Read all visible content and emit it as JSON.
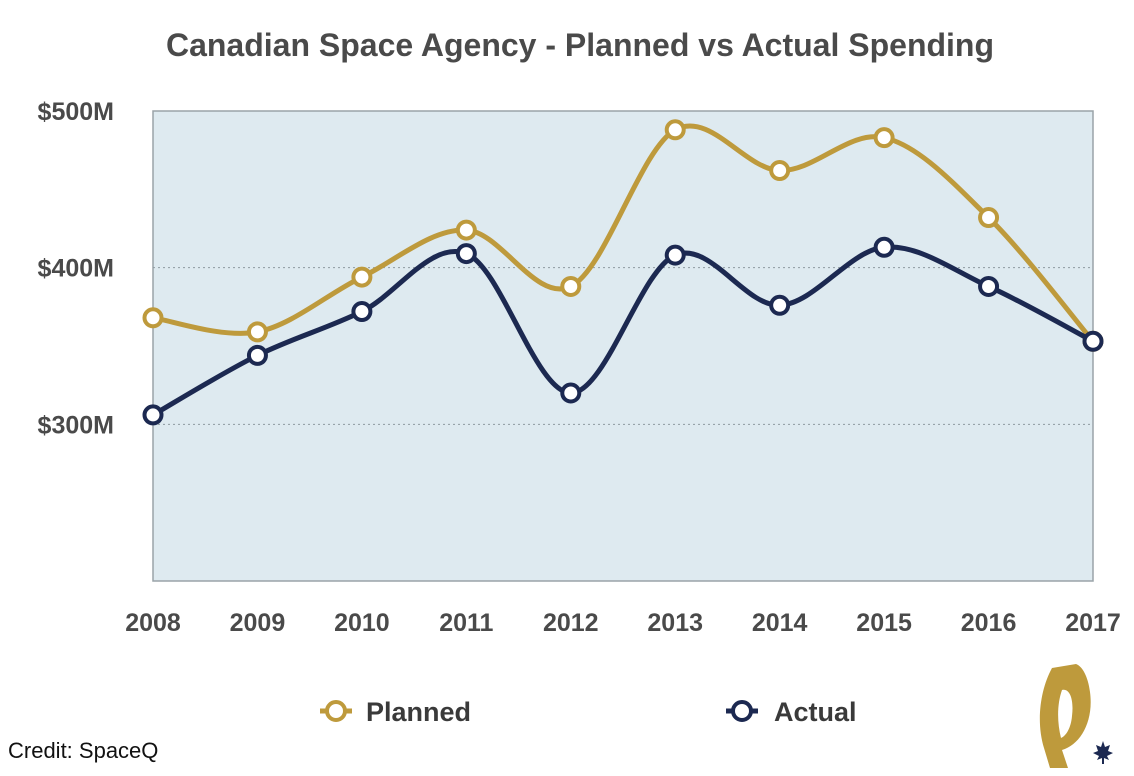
{
  "chart_data": {
    "type": "line",
    "title": "Canadian Space Agency - Planned vs Actual Spending",
    "categories": [
      "2008",
      "2009",
      "2010",
      "2011",
      "2012",
      "2013",
      "2014",
      "2015",
      "2016",
      "2017"
    ],
    "series": [
      {
        "name": "Planned",
        "color": "#BE9A3C",
        "values": [
          368,
          359,
          394,
          424,
          388,
          488,
          462,
          483,
          432,
          353
        ]
      },
      {
        "name": "Actual",
        "color": "#1C2951",
        "values": [
          306,
          344,
          372,
          409,
          320,
          408,
          376,
          413,
          388,
          353
        ]
      }
    ],
    "ylim": [
      200,
      500
    ],
    "yticks": [
      300,
      400,
      500
    ],
    "ytick_labels": [
      "$300M",
      "$400M",
      "$500M"
    ],
    "grid": true,
    "legend": "bottom",
    "plot_background": "#DEEAF0"
  },
  "credit": "Credit: SpaceQ",
  "logo": {
    "icon": "spaceq-logo-icon",
    "color": "#BE9A3C",
    "leaf_color": "#1C2951"
  }
}
